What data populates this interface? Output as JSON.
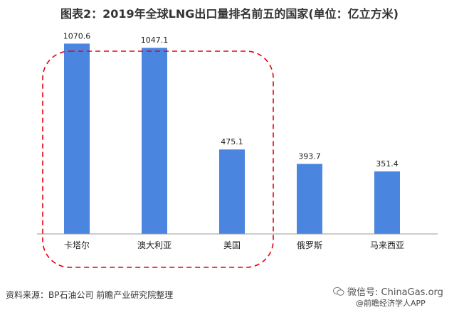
{
  "title": "图表2：2019年全球LNG出口量排名前五的国家(单位：亿立方米)",
  "source": "资料来源：BP石油公司 前瞻产业研究院整理",
  "wechat": "微信号: ChinaGas.org",
  "credit": "@前瞻经济学人APP",
  "chart_data": {
    "type": "bar",
    "title": "图表2：2019年全球LNG出口量排名前五的国家(单位：亿立方米)",
    "categories": [
      "卡塔尔",
      "澳大利亚",
      "美国",
      "俄罗斯",
      "马来西亚"
    ],
    "values": [
      1070.6,
      1047.1,
      475.1,
      393.7,
      351.4
    ],
    "value_labels": [
      "1070.6",
      "1047.1",
      "475.1",
      "393.7",
      "351.4"
    ],
    "bar_color": "#4a86e0",
    "highlight_color": "#e60012",
    "highlighted_categories": [
      "卡塔尔",
      "澳大利亚",
      "美国"
    ],
    "ylim": [
      0,
      1200
    ],
    "grid": false,
    "xlabel": "",
    "ylabel": ""
  }
}
